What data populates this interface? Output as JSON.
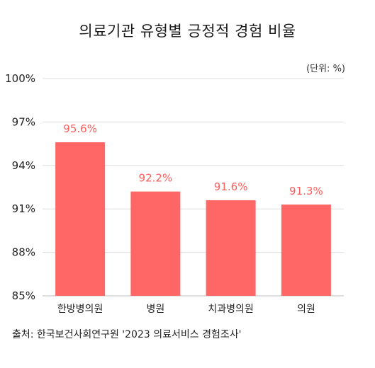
{
  "chart_data": {
    "type": "bar",
    "title": "의료기관 유형별 긍정적 경험 비율",
    "unit_note": "(단위: %)",
    "categories": [
      "한방병의원",
      "병원",
      "치과병의원",
      "의원"
    ],
    "values": [
      95.6,
      92.2,
      91.6,
      91.3
    ],
    "data_labels": [
      "95.6%",
      "92.2%",
      "91.6%",
      "91.3%"
    ],
    "yticks": [
      85,
      88,
      91,
      94,
      97,
      100
    ],
    "ytick_labels": [
      "85%",
      "88%",
      "91%",
      "94%",
      "97%",
      "100%"
    ],
    "ylim": [
      85,
      100
    ],
    "grid": true,
    "bar_color": "#ff6666",
    "label_color": "#ff5c5c",
    "source": "출처: 한국보건사회연구원 '2023 의료서비스 경험조사'"
  }
}
